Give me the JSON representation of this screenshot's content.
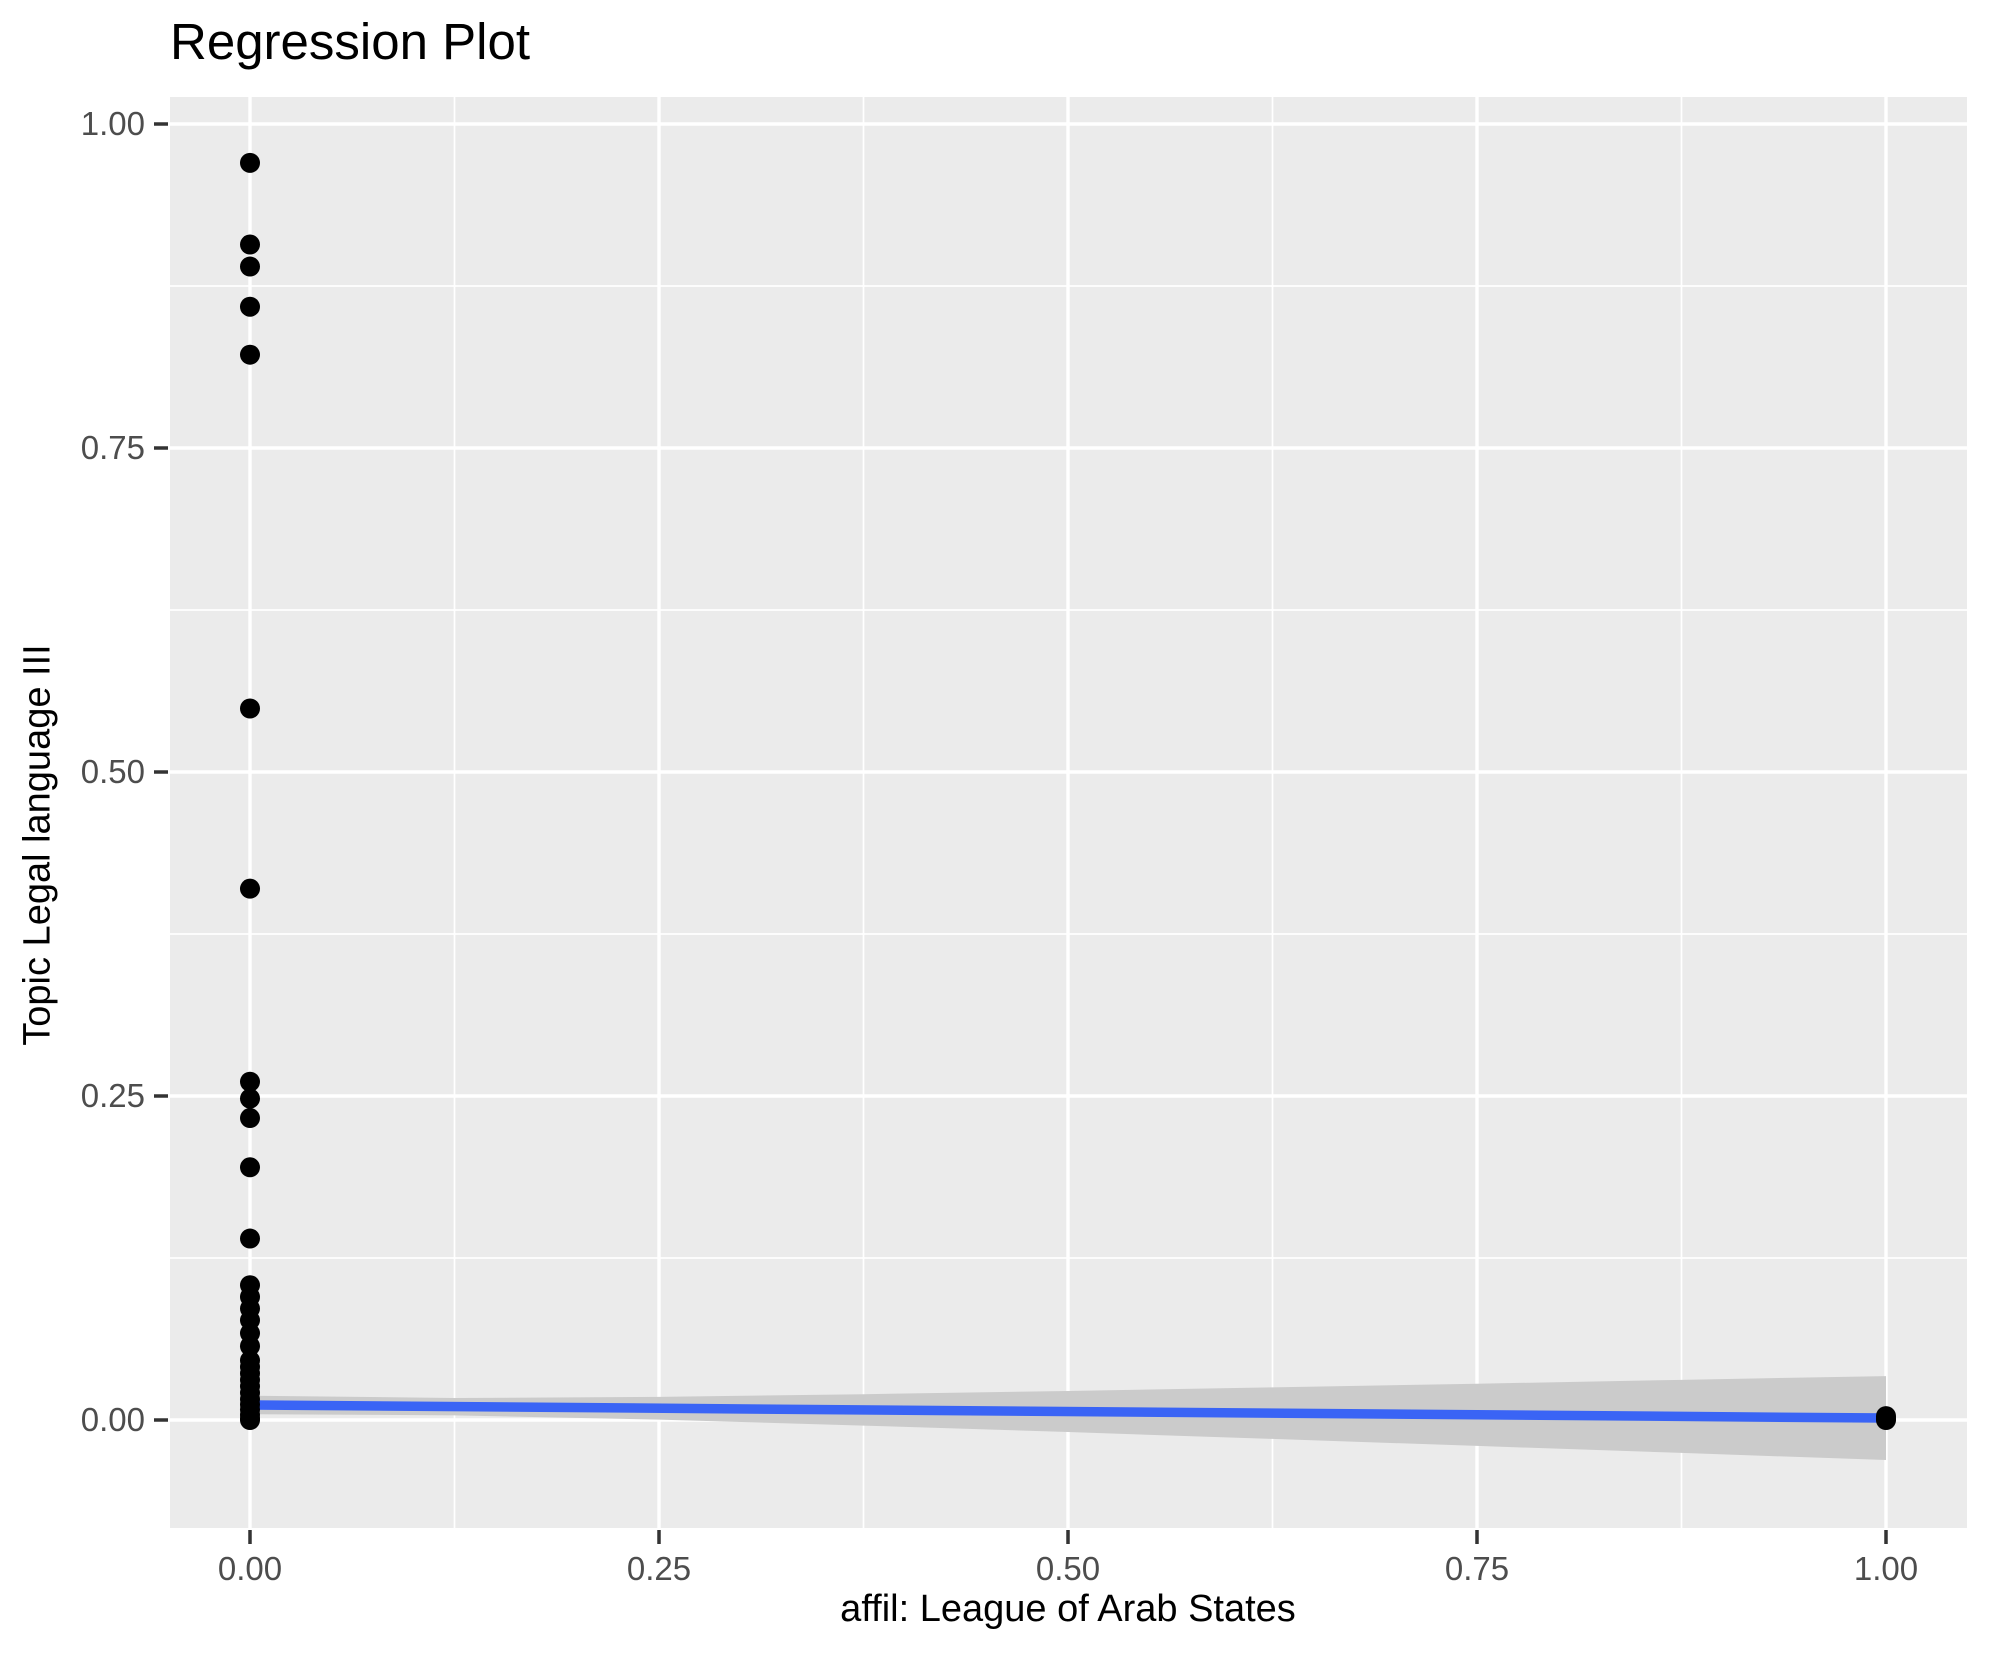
{
  "chart_data": {
    "type": "scatter",
    "title": "Regression Plot",
    "xlabel": "affil: League of Arab States",
    "ylabel": "Topic Legal language III",
    "legend": "none",
    "grid": "white major and minor gridlines on gray panel",
    "xlim": [
      -0.049,
      1.049
    ],
    "ylim": [
      -0.083,
      1.021
    ],
    "x_ticks": {
      "values": [
        0,
        0.25,
        0.5,
        0.75,
        1
      ],
      "labels": [
        "0.00",
        "0.25",
        "0.50",
        "0.75",
        "1.00"
      ]
    },
    "y_ticks": {
      "values": [
        0,
        0.25,
        0.5,
        0.75,
        1
      ],
      "labels": [
        "0.00",
        "0.25",
        "0.50",
        "0.75",
        "1.00"
      ]
    },
    "x_minor_ticks": [
      0.125,
      0.375,
      0.625,
      0.875
    ],
    "y_minor_ticks": [
      0.125,
      0.375,
      0.625,
      0.875
    ],
    "points": [
      {
        "x": 0,
        "y": 0.97
      },
      {
        "x": 0,
        "y": 0.907
      },
      {
        "x": 0,
        "y": 0.89
      },
      {
        "x": 0,
        "y": 0.859
      },
      {
        "x": 0,
        "y": 0.822
      },
      {
        "x": 0,
        "y": 0.549
      },
      {
        "x": 0,
        "y": 0.41
      },
      {
        "x": 0,
        "y": 0.261
      },
      {
        "x": 0,
        "y": 0.248
      },
      {
        "x": 0,
        "y": 0.233
      },
      {
        "x": 0,
        "y": 0.195
      },
      {
        "x": 0,
        "y": 0.14
      },
      {
        "x": 0,
        "y": 0.104
      },
      {
        "x": 0,
        "y": 0.095
      },
      {
        "x": 0,
        "y": 0.086
      },
      {
        "x": 0,
        "y": 0.077
      },
      {
        "x": 0,
        "y": 0.067
      },
      {
        "x": 0,
        "y": 0.057
      },
      {
        "x": 0,
        "y": 0.046
      },
      {
        "x": 0,
        "y": 0.041
      },
      {
        "x": 0,
        "y": 0.036
      },
      {
        "x": 0,
        "y": 0.031
      },
      {
        "x": 0,
        "y": 0.026
      },
      {
        "x": 0,
        "y": 0.021
      },
      {
        "x": 0,
        "y": 0.016
      },
      {
        "x": 0,
        "y": 0.012
      },
      {
        "x": 0,
        "y": 0.008
      },
      {
        "x": 0,
        "y": 0.004
      },
      {
        "x": 0,
        "y": 0.001
      },
      {
        "x": 0,
        "y": 0.0
      },
      {
        "x": 1,
        "y": 0.003
      },
      {
        "x": 1,
        "y": 0.001
      },
      {
        "x": 1,
        "y": 0.0
      }
    ],
    "regression_line": {
      "x": [
        0,
        1
      ],
      "y": [
        0.0116,
        0.0015
      ]
    },
    "confidence_band": {
      "x": [
        0,
        0.125,
        0.25,
        0.375,
        0.5,
        0.625,
        0.75,
        0.875,
        1
      ],
      "upper": [
        0.0187,
        0.017,
        0.0178,
        0.0199,
        0.0224,
        0.0252,
        0.028,
        0.031,
        0.0339
      ],
      "lower": [
        0.0045,
        0.0036,
        0.0003,
        -0.0043,
        -0.0093,
        -0.0146,
        -0.02,
        -0.0254,
        -0.0309
      ]
    },
    "colors": {
      "panel": "#EBEBEB",
      "gridline": "#FFFFFF",
      "point": "#000000",
      "line": "#3A64F5",
      "band": "#CBCBCB",
      "tick_label": "#4D4D4D",
      "tick_mark": "#333333",
      "text": "#000000"
    }
  }
}
